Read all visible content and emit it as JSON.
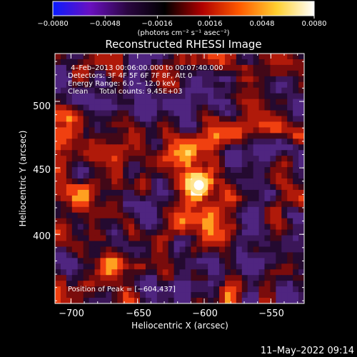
{
  "colorbar": {
    "ticks": [
      "−0.0080",
      "−0.0048",
      "−0.0016",
      "0.0016",
      "0.0048",
      "0.0080"
    ],
    "units": "(photons cm⁻² s⁻¹ asec⁻²)",
    "colors": [
      "#0a1cff",
      "#6a10c0",
      "#2a0640",
      "#000000",
      "#b00000",
      "#ff5a00",
      "#ffd030",
      "#ffffff"
    ]
  },
  "chart_data": {
    "type": "heatmap",
    "title": "Reconstructed RHESSI Image",
    "xlabel": "Heliocentric X (arcsec)",
    "ylabel": "Heliocentric Y (arcsec)",
    "xlim": [
      -712,
      -525
    ],
    "ylim": [
      348,
      536
    ],
    "x_ticks": [
      -700,
      -650,
      -600,
      -550
    ],
    "y_ticks": [
      400,
      450,
      500
    ],
    "x_tick_labels": [
      "−700",
      "−650",
      "−600",
      "−550"
    ],
    "y_tick_labels": [
      "400",
      "450",
      "500"
    ],
    "peak": [
      -604,
      437
    ],
    "annotations": [
      "4–Feb–2013 00:06:00.000 to 00:07:40.000",
      "Detectors: 3F 4F 5F 6F 7F 8F, Att 0",
      "Energy Range: 6.0 − 12.0 keV",
      "Clean     Total counts: 9.45E+03"
    ],
    "peak_label": "Position of Peak = [−604,437]"
  },
  "footer": {
    "date": "11–May–2022 09:14"
  }
}
